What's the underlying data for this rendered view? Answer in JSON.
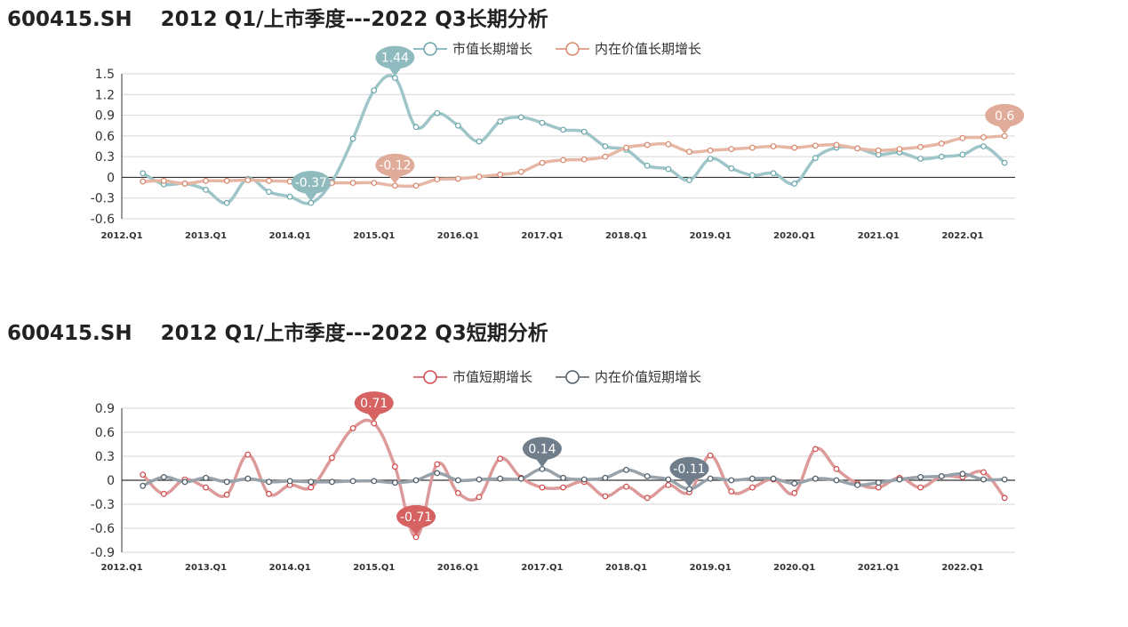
{
  "charts": [
    {
      "title": "600415.SH    2012 Q1/上市季度---2022 Q3长期分析",
      "chart_data": {
        "type": "line",
        "x": [
          "2012.Q2",
          "2012.Q3",
          "2012.Q4",
          "2013.Q1",
          "2013.Q2",
          "2013.Q3",
          "2013.Q4",
          "2014.Q1",
          "2014.Q2",
          "2014.Q3",
          "2014.Q4",
          "2015.Q1",
          "2015.Q2",
          "2015.Q3",
          "2015.Q4",
          "2016.Q1",
          "2016.Q2",
          "2016.Q3",
          "2016.Q4",
          "2017.Q1",
          "2017.Q2",
          "2017.Q3",
          "2017.Q4",
          "2018.Q1",
          "2018.Q2",
          "2018.Q3",
          "2018.Q4",
          "2019.Q1",
          "2019.Q2",
          "2019.Q3",
          "2019.Q4",
          "2020.Q1",
          "2020.Q2",
          "2020.Q3",
          "2020.Q4",
          "2021.Q1",
          "2021.Q2",
          "2021.Q3",
          "2021.Q4",
          "2022.Q1",
          "2022.Q2",
          "2022.Q3"
        ],
        "x_tick_labels": [
          "2012.Q1",
          "2013.Q1",
          "2014.Q1",
          "2015.Q1",
          "2016.Q1",
          "2017.Q1",
          "2018.Q1",
          "2019.Q1",
          "2020.Q1",
          "2021.Q1",
          "2022.Q1"
        ],
        "ylim": [
          -0.6,
          1.5
        ],
        "y_ticks": [
          "-0.6",
          "-0.3",
          "0",
          "0.3",
          "0.6",
          "0.9",
          "1.2",
          "1.5"
        ],
        "grid": true,
        "legend_position": "top-center",
        "series": [
          {
            "name": "市值长期增长",
            "color": "#9ec5c8",
            "marker_color": "#6aa7ad",
            "values": [
              0.06,
              -0.1,
              -0.09,
              -0.18,
              -0.37,
              -0.02,
              -0.21,
              -0.28,
              -0.37,
              -0.06,
              0.56,
              1.26,
              1.44,
              0.73,
              0.93,
              0.75,
              0.52,
              0.81,
              0.87,
              0.79,
              0.69,
              0.66,
              0.45,
              0.4,
              0.17,
              0.12,
              -0.04,
              0.27,
              0.13,
              0.03,
              0.06,
              -0.09,
              0.28,
              0.43,
              0.42,
              0.33,
              0.36,
              0.27,
              0.3,
              0.33,
              0.45,
              0.21
            ]
          },
          {
            "name": "内在价值长期增长",
            "color": "#e6b7a5",
            "marker_color": "#d7896d",
            "values": [
              -0.06,
              -0.05,
              -0.09,
              -0.05,
              -0.05,
              -0.04,
              -0.05,
              -0.06,
              -0.08,
              -0.08,
              -0.08,
              -0.08,
              -0.12,
              -0.12,
              -0.03,
              -0.02,
              0.01,
              0.04,
              0.08,
              0.21,
              0.25,
              0.26,
              0.3,
              0.43,
              0.47,
              0.48,
              0.37,
              0.39,
              0.41,
              0.43,
              0.45,
              0.43,
              0.46,
              0.47,
              0.42,
              0.39,
              0.41,
              0.44,
              0.49,
              0.57,
              0.58,
              0.6
            ]
          }
        ],
        "annotations": [
          {
            "label": "1.44",
            "series": 0,
            "index": 12,
            "color": "#8fbbbf"
          },
          {
            "label": "-0.37",
            "series": 0,
            "index": 8,
            "color": "#8fbbbf"
          },
          {
            "label": "-0.12",
            "series": 1,
            "index": 12,
            "color": "#e0ab98"
          },
          {
            "label": "0.6",
            "series": 1,
            "index": 41,
            "color": "#e0ab98"
          }
        ]
      }
    },
    {
      "title": "600415.SH    2012 Q1/上市季度---2022 Q3短期分析",
      "chart_data": {
        "type": "line",
        "x": [
          "2012.Q2",
          "2012.Q3",
          "2012.Q4",
          "2013.Q1",
          "2013.Q2",
          "2013.Q3",
          "2013.Q4",
          "2014.Q1",
          "2014.Q2",
          "2014.Q3",
          "2014.Q4",
          "2015.Q1",
          "2015.Q2",
          "2015.Q3",
          "2015.Q4",
          "2016.Q1",
          "2016.Q2",
          "2016.Q3",
          "2016.Q4",
          "2017.Q1",
          "2017.Q2",
          "2017.Q3",
          "2017.Q4",
          "2018.Q1",
          "2018.Q2",
          "2018.Q3",
          "2018.Q4",
          "2019.Q1",
          "2019.Q2",
          "2019.Q3",
          "2019.Q4",
          "2020.Q1",
          "2020.Q2",
          "2020.Q3",
          "2020.Q4",
          "2021.Q1",
          "2021.Q2",
          "2021.Q3",
          "2021.Q4",
          "2022.Q1",
          "2022.Q2",
          "2022.Q3"
        ],
        "x_tick_labels": [
          "2012.Q1",
          "2013.Q1",
          "2014.Q1",
          "2015.Q1",
          "2016.Q1",
          "2017.Q1",
          "2018.Q1",
          "2019.Q1",
          "2020.Q1",
          "2021.Q1",
          "2022.Q1"
        ],
        "ylim": [
          -0.9,
          0.9
        ],
        "y_ticks": [
          "-0.9",
          "-0.6",
          "-0.3",
          "0",
          "0.3",
          "0.6",
          "0.9"
        ],
        "grid": true,
        "legend_position": "top-center",
        "series": [
          {
            "name": "市值短期增长",
            "color": "#dd9a9a",
            "marker_color": "#d14b4b",
            "values": [
              0.07,
              -0.17,
              0.01,
              -0.09,
              -0.18,
              0.32,
              -0.17,
              -0.06,
              -0.09,
              0.28,
              0.65,
              0.71,
              0.17,
              -0.71,
              0.2,
              -0.16,
              -0.21,
              0.27,
              0.03,
              -0.09,
              -0.09,
              -0.02,
              -0.2,
              -0.08,
              -0.22,
              -0.06,
              -0.15,
              0.31,
              -0.14,
              -0.09,
              0.01,
              -0.16,
              0.39,
              0.14,
              -0.04,
              -0.09,
              0.03,
              -0.09,
              0.05,
              0.04,
              0.1,
              -0.22
            ]
          },
          {
            "name": "内在价值短期增长",
            "color": "#98a2aa",
            "marker_color": "#4c5a66",
            "values": [
              -0.07,
              0.04,
              -0.02,
              0.03,
              -0.02,
              0.02,
              -0.02,
              -0.01,
              -0.02,
              -0.02,
              -0.01,
              -0.01,
              -0.03,
              0.0,
              0.09,
              0.0,
              0.01,
              0.02,
              0.02,
              0.14,
              0.03,
              0.01,
              0.03,
              0.13,
              0.05,
              0.01,
              -0.11,
              0.02,
              0.0,
              0.02,
              0.02,
              -0.04,
              0.02,
              0.0,
              -0.06,
              -0.03,
              0.01,
              0.04,
              0.05,
              0.08,
              0.01,
              0.01
            ]
          }
        ],
        "annotations": [
          {
            "label": "0.71",
            "series": 0,
            "index": 11,
            "color": "#d66262"
          },
          {
            "label": "-0.71",
            "series": 0,
            "index": 13,
            "color": "#d66262"
          },
          {
            "label": "0.14",
            "series": 1,
            "index": 19,
            "color": "#6f7e8a"
          },
          {
            "label": "-0.11",
            "series": 1,
            "index": 26,
            "color": "#6f7e8a"
          }
        ]
      }
    }
  ]
}
